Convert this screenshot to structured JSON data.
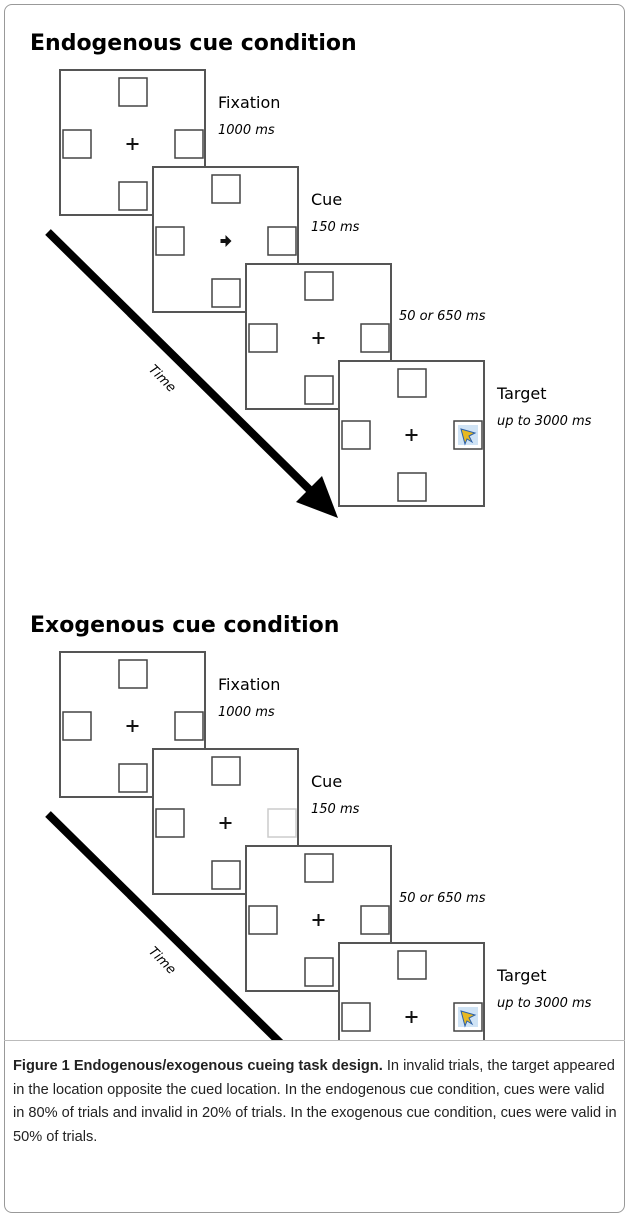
{
  "panels": [
    {
      "title": "Endogenous cue condition",
      "time_label": "Time",
      "frames": [
        {
          "label": "Fixation",
          "duration": "1000 ms"
        },
        {
          "label": "Cue",
          "duration": "150 ms"
        },
        {
          "duration": "50 or 650 ms"
        },
        {
          "label": "Target",
          "duration": "up to 3000 ms"
        }
      ]
    },
    {
      "title": "Exogenous cue condition",
      "time_label": "Time",
      "frames": [
        {
          "label": "Fixation",
          "duration": "1000 ms"
        },
        {
          "label": "Cue",
          "duration": "150 ms"
        },
        {
          "duration": "50 or 650 ms"
        },
        {
          "label": "Target",
          "duration": "up to 3000 ms"
        }
      ]
    }
  ],
  "caption": {
    "label": "Figure 1",
    "title": "Endogenous/exogenous cueing task design.",
    "text": "In invalid trials, the target appeared in the location opposite the cued location. In the endogenous cue condition, cues were valid in 80% of trials and invalid in 20% of trials. In the exogenous cue condition, cues were valid in 50% of trials."
  }
}
